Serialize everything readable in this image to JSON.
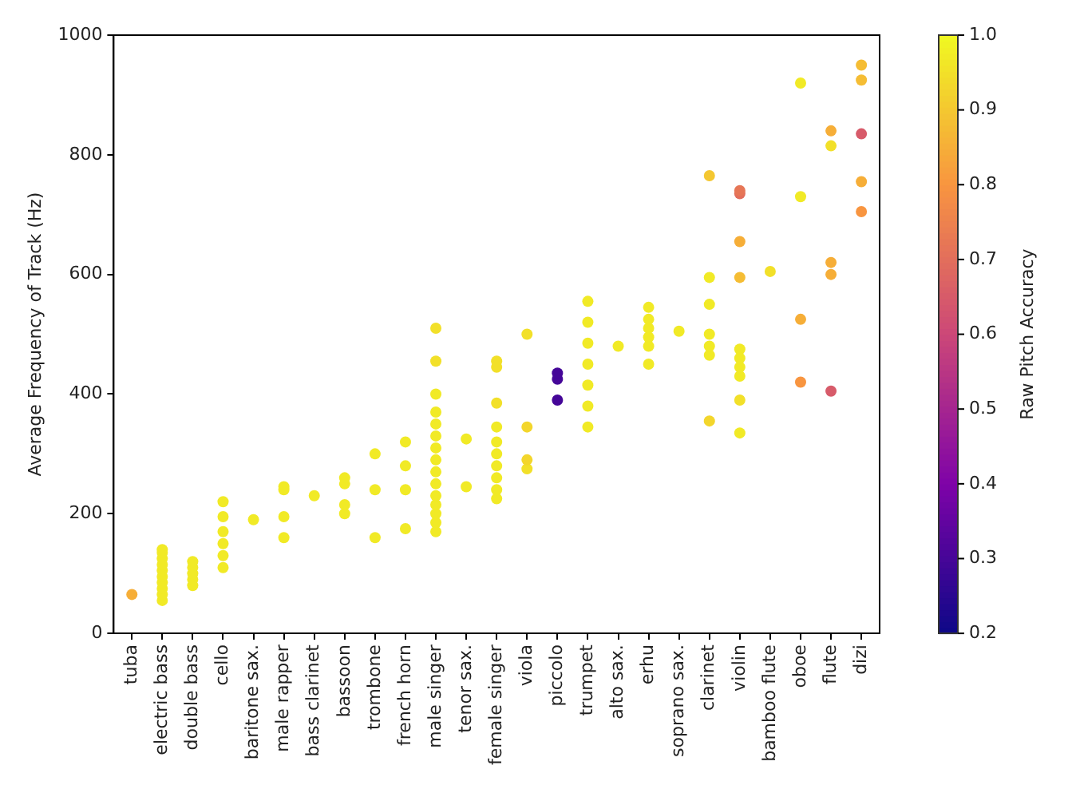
{
  "chart_data": {
    "type": "scatter",
    "ylabel": "Average Frequency of Track (Hz)",
    "clabel": "Raw Pitch Accuracy",
    "categories": [
      "tuba",
      "electric bass",
      "double bass",
      "cello",
      "baritone sax.",
      "male rapper",
      "bass clarinet",
      "bassoon",
      "trombone",
      "french horn",
      "male singer",
      "tenor sax.",
      "female singer",
      "viola",
      "piccolo",
      "trumpet",
      "alto sax.",
      "erhu",
      "soprano sax.",
      "clarinet",
      "violin",
      "bamboo flute",
      "oboe",
      "flute",
      "dizi"
    ],
    "ylim": [
      0,
      1000
    ],
    "yticks": [
      0,
      200,
      400,
      600,
      800,
      1000
    ],
    "clim": [
      0.2,
      1.0
    ],
    "cticks": [
      {
        "value": 0.2,
        "label": "0.2"
      },
      {
        "value": 0.3,
        "label": "0.3"
      },
      {
        "value": 0.4,
        "label": "0.4"
      },
      {
        "value": 0.5,
        "label": "0.5"
      },
      {
        "value": 0.6,
        "label": "0.6"
      },
      {
        "value": 0.7,
        "label": "0.7"
      },
      {
        "value": 0.8,
        "label": "0.8"
      },
      {
        "value": 0.9,
        "label": "0.9"
      },
      {
        "value": 1.0,
        "label": "1.0"
      }
    ],
    "grid": false,
    "legend": false,
    "marker": "circle",
    "series": [
      {
        "x": [
          "tuba",
          "electric bass",
          "electric bass",
          "electric bass",
          "electric bass",
          "electric bass",
          "electric bass",
          "electric bass",
          "electric bass",
          "electric bass",
          "electric bass",
          "double bass",
          "double bass",
          "double bass",
          "double bass",
          "double bass",
          "cello",
          "cello",
          "cello",
          "cello",
          "cello",
          "cello",
          "baritone sax.",
          "male rapper",
          "male rapper",
          "male rapper",
          "male rapper",
          "bass clarinet",
          "bassoon",
          "bassoon",
          "bassoon",
          "bassoon",
          "trombone",
          "trombone",
          "trombone",
          "french horn",
          "french horn",
          "french horn",
          "french horn",
          "male singer",
          "male singer",
          "male singer",
          "male singer",
          "male singer",
          "male singer",
          "male singer",
          "male singer",
          "male singer",
          "male singer",
          "male singer",
          "male singer",
          "male singer",
          "male singer",
          "male singer",
          "tenor sax.",
          "tenor sax.",
          "female singer",
          "female singer",
          "female singer",
          "female singer",
          "female singer",
          "female singer",
          "female singer",
          "female singer",
          "female singer",
          "female singer",
          "viola",
          "viola",
          "viola",
          "viola",
          "piccolo",
          "piccolo",
          "piccolo",
          "trumpet",
          "trumpet",
          "trumpet",
          "trumpet",
          "trumpet",
          "trumpet",
          "trumpet",
          "alto sax.",
          "erhu",
          "erhu",
          "erhu",
          "erhu",
          "erhu",
          "erhu",
          "soprano sax.",
          "clarinet",
          "clarinet",
          "clarinet",
          "clarinet",
          "clarinet",
          "clarinet",
          "clarinet",
          "violin",
          "violin",
          "violin",
          "violin",
          "violin",
          "violin",
          "violin",
          "violin",
          "violin",
          "violin",
          "bamboo flute",
          "oboe",
          "oboe",
          "oboe",
          "oboe",
          "flute",
          "flute",
          "flute",
          "flute",
          "flute",
          "dizi",
          "dizi",
          "dizi",
          "dizi",
          "dizi"
        ],
        "values": [
          65,
          55,
          65,
          75,
          85,
          95,
          105,
          115,
          125,
          135,
          140,
          80,
          90,
          100,
          110,
          120,
          110,
          130,
          150,
          170,
          195,
          220,
          190,
          160,
          195,
          240,
          245,
          230,
          200,
          215,
          250,
          260,
          160,
          240,
          300,
          175,
          240,
          280,
          320,
          170,
          185,
          200,
          215,
          230,
          250,
          270,
          290,
          310,
          330,
          350,
          370,
          400,
          455,
          510,
          245,
          325,
          225,
          240,
          260,
          280,
          300,
          320,
          345,
          385,
          445,
          455,
          275,
          290,
          345,
          500,
          390,
          425,
          435,
          345,
          380,
          415,
          450,
          485,
          520,
          555,
          480,
          450,
          480,
          495,
          510,
          525,
          545,
          505,
          355,
          465,
          480,
          500,
          550,
          595,
          765,
          335,
          390,
          430,
          445,
          460,
          475,
          595,
          655,
          735,
          740,
          605,
          420,
          525,
          730,
          920,
          405,
          600,
          620,
          815,
          840,
          705,
          755,
          835,
          925,
          950
        ],
        "cvalues": [
          0.85,
          0.97,
          0.97,
          0.97,
          0.97,
          0.97,
          0.97,
          0.97,
          0.97,
          0.97,
          0.97,
          0.97,
          0.97,
          0.97,
          0.97,
          0.97,
          0.97,
          0.97,
          0.97,
          0.97,
          0.97,
          0.97,
          0.97,
          0.97,
          0.97,
          0.97,
          0.97,
          0.97,
          0.97,
          0.97,
          0.97,
          0.97,
          0.97,
          0.97,
          0.97,
          0.97,
          0.97,
          0.97,
          0.97,
          0.97,
          0.97,
          0.97,
          0.97,
          0.97,
          0.97,
          0.97,
          0.97,
          0.97,
          0.97,
          0.97,
          0.97,
          0.97,
          0.95,
          0.95,
          0.97,
          0.97,
          0.97,
          0.97,
          0.97,
          0.97,
          0.97,
          0.97,
          0.97,
          0.95,
          0.95,
          0.95,
          0.95,
          0.93,
          0.93,
          0.95,
          0.3,
          0.3,
          0.3,
          0.97,
          0.97,
          0.97,
          0.97,
          0.97,
          0.97,
          0.97,
          0.97,
          0.97,
          0.97,
          0.97,
          0.97,
          0.97,
          0.97,
          0.97,
          0.93,
          0.97,
          0.97,
          0.97,
          0.97,
          0.97,
          0.9,
          0.97,
          0.95,
          0.97,
          0.97,
          0.97,
          0.97,
          0.88,
          0.85,
          0.7,
          0.72,
          0.95,
          0.8,
          0.85,
          0.97,
          0.97,
          0.65,
          0.85,
          0.85,
          0.95,
          0.85,
          0.8,
          0.85,
          0.65,
          0.88,
          0.88
        ]
      }
    ]
  }
}
